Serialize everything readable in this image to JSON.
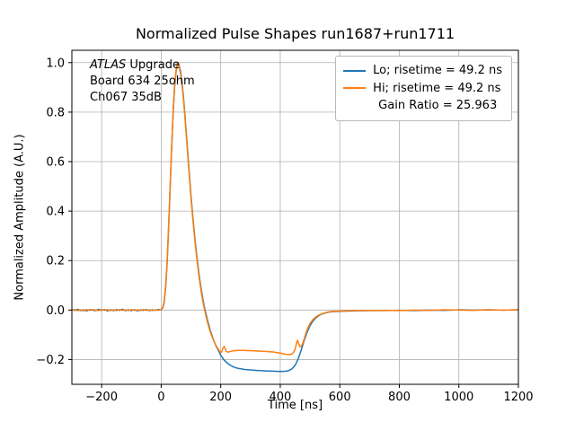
{
  "figure": {
    "title": "Normalized Pulse Shapes run1687+run1711",
    "xlabel": "Time [ns]",
    "ylabel": "Normalized Amplitude (A.U.)"
  },
  "annotation": {
    "line1_italic": "ATLAS",
    "line1_rest": " Upgrade",
    "line2": "Board 634 25ohm",
    "line3": "Ch067 35dB"
  },
  "legend": {
    "items": [
      {
        "label": "Lo; risetime = 49.2 ns",
        "color": "#1f77b4"
      },
      {
        "label": "Hi; risetime = 49.2 ns",
        "color": "#ff7f0e"
      },
      {
        "label": "Gain Ratio = 25.963",
        "color": null
      }
    ]
  },
  "chart_data": {
    "type": "line",
    "title": "Normalized Pulse Shapes run1687+run1711",
    "xlabel": "Time [ns]",
    "ylabel": "Normalized Amplitude (A.U.)",
    "xlim": [
      -300,
      1200
    ],
    "ylim": [
      -0.3,
      1.05
    ],
    "grid": true,
    "legend_position": "upper right",
    "grid_color": "#b0b0b0",
    "xticks": {
      "values": [
        -200,
        0,
        200,
        400,
        600,
        800,
        1000,
        1200
      ],
      "labels": [
        "−200",
        "0",
        "200",
        "400",
        "600",
        "800",
        "1000",
        "1200"
      ]
    },
    "yticks": {
      "values": [
        -0.2,
        0.0,
        0.2,
        0.4,
        0.6,
        0.8,
        1.0
      ],
      "labels": [
        "−0.2",
        "0.0",
        "0.2",
        "0.4",
        "0.6",
        "0.8",
        "1.0"
      ]
    },
    "annotations": [
      "ATLAS Upgrade",
      "Board 634 25ohm",
      "Ch067 35dB"
    ],
    "series": [
      {
        "name": "Lo; risetime = 49.2 ns",
        "color": "#1f77b4",
        "points": [
          [
            -300,
            0.002
          ],
          [
            -290,
            -0.001
          ],
          [
            -280,
            0.003
          ],
          [
            -270,
            -0.002
          ],
          [
            -260,
            0.001
          ],
          [
            -250,
            -0.003
          ],
          [
            -240,
            0.002
          ],
          [
            -230,
            0.0
          ],
          [
            -220,
            -0.002
          ],
          [
            -210,
            0.003
          ],
          [
            -200,
            -0.001
          ],
          [
            -190,
            0.002
          ],
          [
            -180,
            -0.003
          ],
          [
            -170,
            0.001
          ],
          [
            -160,
            -0.002
          ],
          [
            -150,
            0.002
          ],
          [
            -140,
            -0.001
          ],
          [
            -130,
            0.003
          ],
          [
            -120,
            -0.002
          ],
          [
            -110,
            0.001
          ],
          [
            -100,
            -0.002
          ],
          [
            -90,
            0.002
          ],
          [
            -80,
            -0.003
          ],
          [
            -70,
            0.001
          ],
          [
            -60,
            -0.001
          ],
          [
            -50,
            0.002
          ],
          [
            -40,
            -0.002
          ],
          [
            -30,
            0.001
          ],
          [
            -20,
            -0.001
          ],
          [
            -10,
            0.002
          ],
          [
            0,
            0.001
          ],
          [
            5,
            0.008
          ],
          [
            10,
            0.03
          ],
          [
            15,
            0.09
          ],
          [
            20,
            0.19
          ],
          [
            25,
            0.33
          ],
          [
            30,
            0.49
          ],
          [
            35,
            0.65
          ],
          [
            40,
            0.79
          ],
          [
            45,
            0.9
          ],
          [
            50,
            0.965
          ],
          [
            55,
            1.0
          ],
          [
            60,
            0.99
          ],
          [
            65,
            0.965
          ],
          [
            70,
            0.92
          ],
          [
            75,
            0.86
          ],
          [
            80,
            0.785
          ],
          [
            85,
            0.705
          ],
          [
            90,
            0.625
          ],
          [
            95,
            0.545
          ],
          [
            100,
            0.465
          ],
          [
            105,
            0.395
          ],
          [
            110,
            0.33
          ],
          [
            115,
            0.27
          ],
          [
            120,
            0.215
          ],
          [
            125,
            0.165
          ],
          [
            130,
            0.12
          ],
          [
            135,
            0.08
          ],
          [
            140,
            0.045
          ],
          [
            145,
            0.013
          ],
          [
            150,
            -0.013
          ],
          [
            155,
            -0.038
          ],
          [
            160,
            -0.06
          ],
          [
            165,
            -0.082
          ],
          [
            170,
            -0.1
          ],
          [
            175,
            -0.118
          ],
          [
            180,
            -0.133
          ],
          [
            185,
            -0.147
          ],
          [
            190,
            -0.158
          ],
          [
            195,
            -0.17
          ],
          [
            200,
            -0.182
          ],
          [
            210,
            -0.2
          ],
          [
            220,
            -0.212
          ],
          [
            230,
            -0.221
          ],
          [
            240,
            -0.228
          ],
          [
            250,
            -0.233
          ],
          [
            260,
            -0.236
          ],
          [
            270,
            -0.238
          ],
          [
            280,
            -0.24
          ],
          [
            290,
            -0.241
          ],
          [
            300,
            -0.242
          ],
          [
            310,
            -0.243
          ],
          [
            320,
            -0.244
          ],
          [
            330,
            -0.244
          ],
          [
            340,
            -0.245
          ],
          [
            350,
            -0.246
          ],
          [
            360,
            -0.246
          ],
          [
            370,
            -0.247
          ],
          [
            380,
            -0.247
          ],
          [
            390,
            -0.248
          ],
          [
            400,
            -0.248
          ],
          [
            410,
            -0.248
          ],
          [
            420,
            -0.247
          ],
          [
            430,
            -0.244
          ],
          [
            440,
            -0.237
          ],
          [
            450,
            -0.223
          ],
          [
            460,
            -0.198
          ],
          [
            470,
            -0.163
          ],
          [
            480,
            -0.124
          ],
          [
            490,
            -0.09
          ],
          [
            500,
            -0.063
          ],
          [
            510,
            -0.044
          ],
          [
            520,
            -0.031
          ],
          [
            530,
            -0.022
          ],
          [
            540,
            -0.016
          ],
          [
            550,
            -0.012
          ],
          [
            560,
            -0.009
          ],
          [
            570,
            -0.007
          ],
          [
            580,
            -0.006
          ],
          [
            600,
            -0.005
          ],
          [
            620,
            -0.004
          ],
          [
            650,
            -0.003
          ],
          [
            700,
            -0.002
          ],
          [
            750,
            -0.002
          ],
          [
            800,
            -0.001
          ],
          [
            850,
            -0.002
          ],
          [
            900,
            0.0
          ],
          [
            950,
            -0.001
          ],
          [
            1000,
            0.001
          ],
          [
            1050,
            0.0
          ],
          [
            1100,
            0.001
          ],
          [
            1150,
            0.0
          ],
          [
            1200,
            0.001
          ]
        ]
      },
      {
        "name": "Hi; risetime = 49.2 ns",
        "color": "#ff7f0e",
        "points": [
          [
            -300,
            -0.001
          ],
          [
            -290,
            0.002
          ],
          [
            -280,
            -0.002
          ],
          [
            -270,
            0.001
          ],
          [
            -260,
            -0.003
          ],
          [
            -250,
            0.002
          ],
          [
            -240,
            -0.001
          ],
          [
            -230,
            0.002
          ],
          [
            -220,
            0.0
          ],
          [
            -210,
            -0.002
          ],
          [
            -200,
            0.002
          ],
          [
            -190,
            -0.001
          ],
          [
            -180,
            0.002
          ],
          [
            -170,
            -0.002
          ],
          [
            -160,
            0.001
          ],
          [
            -150,
            -0.002
          ],
          [
            -140,
            0.002
          ],
          [
            -130,
            -0.001
          ],
          [
            -120,
            0.001
          ],
          [
            -110,
            -0.002
          ],
          [
            -100,
            0.002
          ],
          [
            -90,
            -0.001
          ],
          [
            -80,
            0.001
          ],
          [
            -70,
            -0.002
          ],
          [
            -60,
            0.002
          ],
          [
            -50,
            -0.001
          ],
          [
            -40,
            0.001
          ],
          [
            -30,
            -0.002
          ],
          [
            -20,
            0.001
          ],
          [
            -10,
            -0.001
          ],
          [
            0,
            0.002
          ],
          [
            5,
            0.01
          ],
          [
            10,
            0.035
          ],
          [
            15,
            0.1
          ],
          [
            20,
            0.2
          ],
          [
            25,
            0.34
          ],
          [
            30,
            0.5
          ],
          [
            35,
            0.66
          ],
          [
            40,
            0.8
          ],
          [
            45,
            0.91
          ],
          [
            50,
            0.97
          ],
          [
            55,
            1.0
          ],
          [
            60,
            0.985
          ],
          [
            65,
            0.955
          ],
          [
            70,
            0.91
          ],
          [
            75,
            0.85
          ],
          [
            80,
            0.775
          ],
          [
            85,
            0.695
          ],
          [
            90,
            0.615
          ],
          [
            95,
            0.535
          ],
          [
            100,
            0.455
          ],
          [
            105,
            0.385
          ],
          [
            110,
            0.32
          ],
          [
            115,
            0.26
          ],
          [
            120,
            0.205
          ],
          [
            125,
            0.155
          ],
          [
            130,
            0.11
          ],
          [
            135,
            0.07
          ],
          [
            140,
            0.035
          ],
          [
            145,
            0.005
          ],
          [
            150,
            -0.022
          ],
          [
            155,
            -0.046
          ],
          [
            160,
            -0.068
          ],
          [
            165,
            -0.088
          ],
          [
            170,
            -0.105
          ],
          [
            175,
            -0.12
          ],
          [
            180,
            -0.133
          ],
          [
            185,
            -0.145
          ],
          [
            190,
            -0.155
          ],
          [
            195,
            -0.164
          ],
          [
            200,
            -0.172
          ],
          [
            204,
            -0.168
          ],
          [
            208,
            -0.152
          ],
          [
            212,
            -0.147
          ],
          [
            216,
            -0.16
          ],
          [
            220,
            -0.168
          ],
          [
            225,
            -0.17
          ],
          [
            230,
            -0.168
          ],
          [
            240,
            -0.165
          ],
          [
            250,
            -0.164
          ],
          [
            260,
            -0.163
          ],
          [
            270,
            -0.163
          ],
          [
            280,
            -0.163
          ],
          [
            290,
            -0.164
          ],
          [
            300,
            -0.164
          ],
          [
            310,
            -0.165
          ],
          [
            320,
            -0.165
          ],
          [
            330,
            -0.166
          ],
          [
            340,
            -0.166
          ],
          [
            350,
            -0.167
          ],
          [
            360,
            -0.168
          ],
          [
            370,
            -0.169
          ],
          [
            380,
            -0.17
          ],
          [
            390,
            -0.172
          ],
          [
            400,
            -0.174
          ],
          [
            410,
            -0.177
          ],
          [
            420,
            -0.179
          ],
          [
            430,
            -0.18
          ],
          [
            438,
            -0.178
          ],
          [
            444,
            -0.172
          ],
          [
            450,
            -0.158
          ],
          [
            455,
            -0.133
          ],
          [
            458,
            -0.122
          ],
          [
            462,
            -0.135
          ],
          [
            466,
            -0.148
          ],
          [
            470,
            -0.147
          ],
          [
            475,
            -0.136
          ],
          [
            480,
            -0.118
          ],
          [
            485,
            -0.098
          ],
          [
            490,
            -0.08
          ],
          [
            500,
            -0.054
          ],
          [
            510,
            -0.038
          ],
          [
            520,
            -0.027
          ],
          [
            530,
            -0.02
          ],
          [
            540,
            -0.015
          ],
          [
            550,
            -0.011
          ],
          [
            560,
            -0.008
          ],
          [
            570,
            -0.006
          ],
          [
            580,
            -0.005
          ],
          [
            600,
            -0.004
          ],
          [
            620,
            -0.003
          ],
          [
            650,
            -0.002
          ],
          [
            700,
            -0.002
          ],
          [
            750,
            -0.001
          ],
          [
            800,
            -0.002
          ],
          [
            850,
            0.0
          ],
          [
            900,
            -0.001
          ],
          [
            950,
            0.001
          ],
          [
            1000,
            0.0
          ],
          [
            1050,
            -0.001
          ],
          [
            1100,
            0.001
          ],
          [
            1150,
            0.0
          ],
          [
            1200,
            0.001
          ]
        ]
      }
    ]
  }
}
